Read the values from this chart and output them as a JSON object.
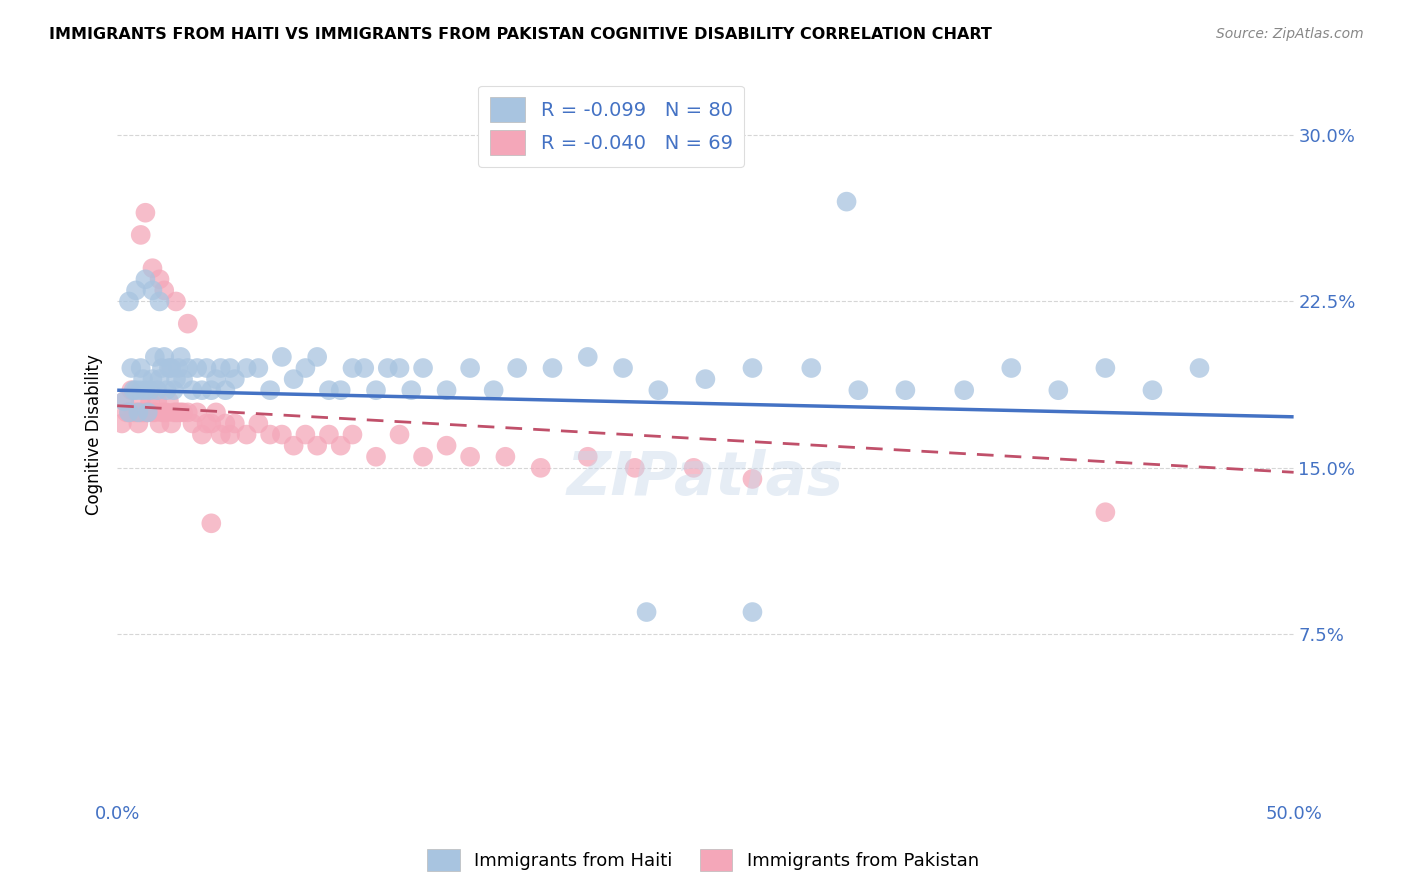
{
  "title": "IMMIGRANTS FROM HAITI VS IMMIGRANTS FROM PAKISTAN COGNITIVE DISABILITY CORRELATION CHART",
  "source": "Source: ZipAtlas.com",
  "ylabel": "Cognitive Disability",
  "xlim": [
    0.0,
    0.5
  ],
  "ylim": [
    0.0,
    0.33
  ],
  "yticks": [
    0.075,
    0.15,
    0.225,
    0.3
  ],
  "ytick_labels": [
    "7.5%",
    "15.0%",
    "22.5%",
    "30.0%"
  ],
  "xticks": [
    0.0,
    0.1,
    0.2,
    0.3,
    0.4,
    0.5
  ],
  "xtick_labels": [
    "0.0%",
    "",
    "",
    "",
    "",
    "50.0%"
  ],
  "haiti_R": -0.099,
  "haiti_N": 80,
  "pakistan_R": -0.04,
  "pakistan_N": 69,
  "haiti_color": "#a8c4e0",
  "pakistan_color": "#f4a7b9",
  "haiti_line_color": "#4472c4",
  "pakistan_line_color": "#c0506a",
  "legend_haiti": "Immigrants from Haiti",
  "legend_pakistan": "Immigrants from Pakistan",
  "haiti_scatter_x": [
    0.003,
    0.005,
    0.006,
    0.007,
    0.008,
    0.009,
    0.01,
    0.01,
    0.011,
    0.012,
    0.013,
    0.014,
    0.015,
    0.016,
    0.017,
    0.018,
    0.019,
    0.02,
    0.021,
    0.022,
    0.023,
    0.024,
    0.025,
    0.026,
    0.027,
    0.028,
    0.03,
    0.032,
    0.034,
    0.036,
    0.038,
    0.04,
    0.042,
    0.044,
    0.046,
    0.048,
    0.05,
    0.055,
    0.06,
    0.065,
    0.07,
    0.075,
    0.08,
    0.085,
    0.09,
    0.095,
    0.1,
    0.105,
    0.11,
    0.115,
    0.12,
    0.125,
    0.13,
    0.14,
    0.15,
    0.16,
    0.17,
    0.185,
    0.2,
    0.215,
    0.23,
    0.25,
    0.27,
    0.295,
    0.315,
    0.335,
    0.36,
    0.38,
    0.4,
    0.42,
    0.44,
    0.46,
    0.005,
    0.008,
    0.012,
    0.015,
    0.018,
    0.225,
    0.27,
    0.31
  ],
  "haiti_scatter_y": [
    0.18,
    0.175,
    0.195,
    0.185,
    0.185,
    0.175,
    0.185,
    0.195,
    0.19,
    0.185,
    0.175,
    0.185,
    0.19,
    0.2,
    0.185,
    0.19,
    0.195,
    0.2,
    0.185,
    0.195,
    0.195,
    0.185,
    0.19,
    0.195,
    0.2,
    0.19,
    0.195,
    0.185,
    0.195,
    0.185,
    0.195,
    0.185,
    0.19,
    0.195,
    0.185,
    0.195,
    0.19,
    0.195,
    0.195,
    0.185,
    0.2,
    0.19,
    0.195,
    0.2,
    0.185,
    0.185,
    0.195,
    0.195,
    0.185,
    0.195,
    0.195,
    0.185,
    0.195,
    0.185,
    0.195,
    0.185,
    0.195,
    0.195,
    0.2,
    0.195,
    0.185,
    0.19,
    0.195,
    0.195,
    0.185,
    0.185,
    0.185,
    0.195,
    0.185,
    0.195,
    0.185,
    0.195,
    0.225,
    0.23,
    0.235,
    0.23,
    0.225,
    0.085,
    0.085,
    0.27
  ],
  "pakistan_scatter_x": [
    0.002,
    0.003,
    0.004,
    0.005,
    0.006,
    0.007,
    0.008,
    0.009,
    0.01,
    0.01,
    0.011,
    0.012,
    0.013,
    0.014,
    0.015,
    0.016,
    0.017,
    0.018,
    0.019,
    0.02,
    0.021,
    0.022,
    0.023,
    0.024,
    0.025,
    0.026,
    0.027,
    0.028,
    0.03,
    0.032,
    0.034,
    0.036,
    0.038,
    0.04,
    0.042,
    0.044,
    0.046,
    0.048,
    0.05,
    0.055,
    0.06,
    0.065,
    0.07,
    0.075,
    0.08,
    0.085,
    0.09,
    0.095,
    0.1,
    0.11,
    0.12,
    0.13,
    0.14,
    0.15,
    0.165,
    0.18,
    0.2,
    0.22,
    0.245,
    0.27,
    0.01,
    0.012,
    0.015,
    0.018,
    0.02,
    0.025,
    0.03,
    0.04,
    0.42
  ],
  "pakistan_scatter_y": [
    0.17,
    0.18,
    0.175,
    0.175,
    0.185,
    0.175,
    0.175,
    0.17,
    0.175,
    0.18,
    0.175,
    0.175,
    0.175,
    0.18,
    0.175,
    0.175,
    0.18,
    0.17,
    0.175,
    0.175,
    0.175,
    0.18,
    0.17,
    0.175,
    0.175,
    0.175,
    0.175,
    0.175,
    0.175,
    0.17,
    0.175,
    0.165,
    0.17,
    0.17,
    0.175,
    0.165,
    0.17,
    0.165,
    0.17,
    0.165,
    0.17,
    0.165,
    0.165,
    0.16,
    0.165,
    0.16,
    0.165,
    0.16,
    0.165,
    0.155,
    0.165,
    0.155,
    0.16,
    0.155,
    0.155,
    0.15,
    0.155,
    0.15,
    0.15,
    0.145,
    0.255,
    0.265,
    0.24,
    0.235,
    0.23,
    0.225,
    0.215,
    0.125,
    0.13
  ],
  "haiti_line_x0": 0.0,
  "haiti_line_y0": 0.185,
  "haiti_line_x1": 0.5,
  "haiti_line_y1": 0.173,
  "pakistan_line_x0": 0.0,
  "pakistan_line_y0": 0.178,
  "pakistan_line_x1": 0.5,
  "pakistan_line_y1": 0.148
}
